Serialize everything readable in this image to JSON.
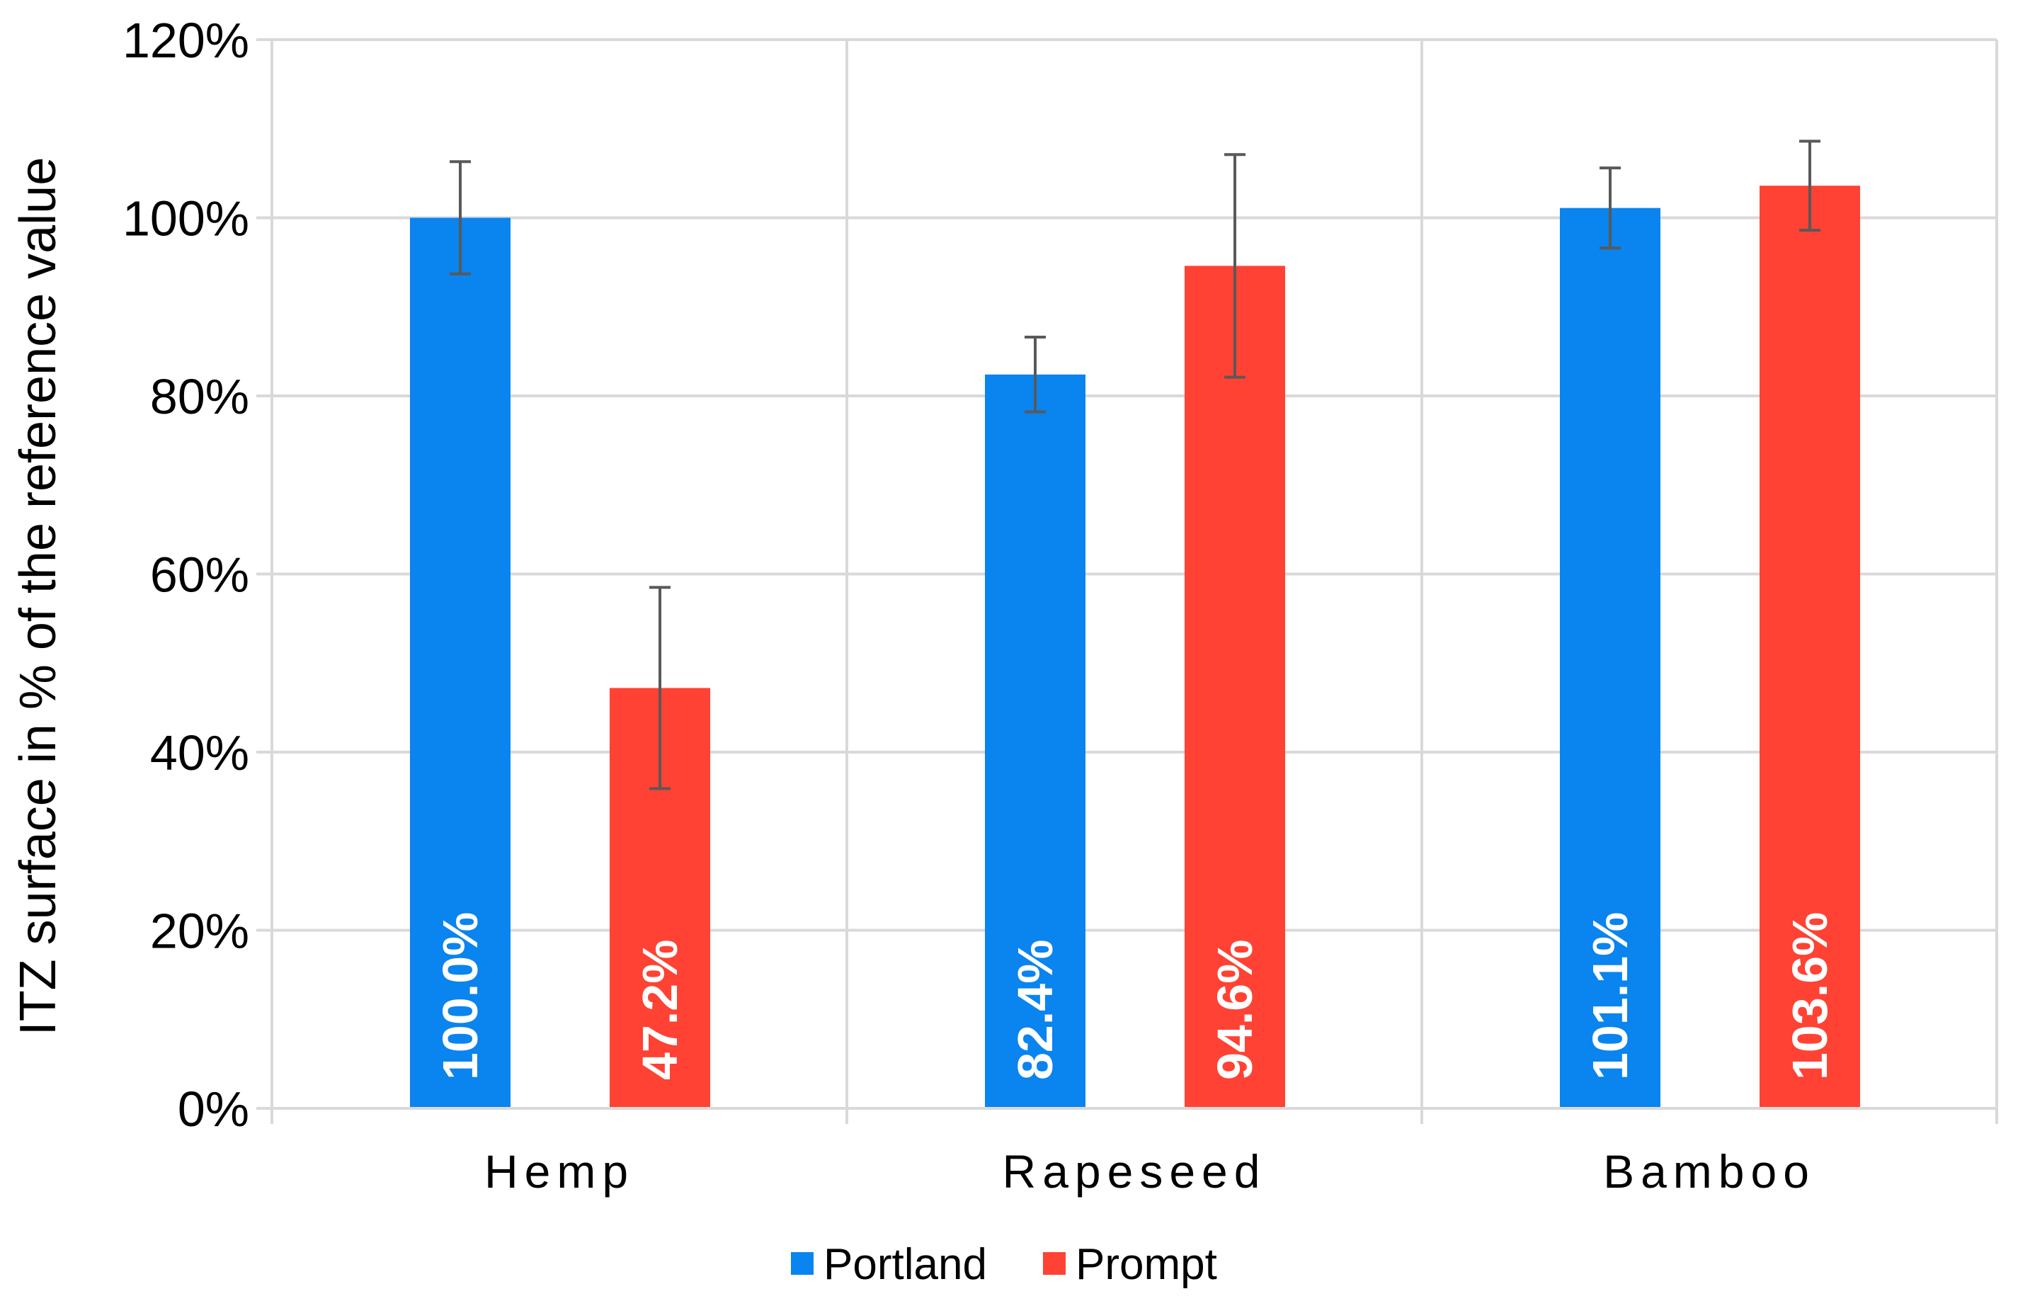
{
  "chart_data": {
    "type": "bar",
    "title": "",
    "xlabel": "",
    "ylabel": "ITZ surface in % of the reference value",
    "ylim": [
      0,
      120
    ],
    "yticks": [
      0,
      20,
      40,
      60,
      80,
      100,
      120
    ],
    "ytick_labels": [
      "0%",
      "20%",
      "40%",
      "60%",
      "80%",
      "100%",
      "120%"
    ],
    "categories": [
      "Hemp",
      "Rapeseed",
      "Bamboo"
    ],
    "grid": true,
    "legend_position": "bottom-center",
    "series": [
      {
        "name": "Portland",
        "color": "#0a84ee",
        "values": [
          100.0,
          82.4,
          101.1
        ],
        "errors": [
          6.3,
          4.2,
          4.5
        ],
        "labels": [
          "100.0%",
          "82.4%",
          "101.1%"
        ]
      },
      {
        "name": "Prompt",
        "color": "#ff4233",
        "values": [
          47.2,
          94.6,
          103.6
        ],
        "errors": [
          11.3,
          12.5,
          5.0
        ],
        "labels": [
          "47.2%",
          "94.6%",
          "103.6%"
        ]
      }
    ]
  }
}
